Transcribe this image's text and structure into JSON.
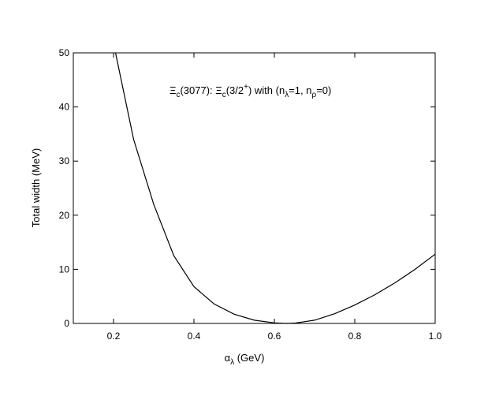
{
  "chart_data": {
    "type": "line",
    "annotation": [
      "Ξ",
      "c",
      "(3077): Ξ",
      "c",
      "(3/2",
      "+",
      ") with (n",
      "λ",
      "=1, n",
      "ρ",
      "=0)"
    ],
    "x_label": [
      "α",
      "λ",
      " (GeV)"
    ],
    "y_label": "Total width (MeV)",
    "x": [
      0.205,
      0.25,
      0.3,
      0.35,
      0.4,
      0.45,
      0.5,
      0.55,
      0.6,
      0.63,
      0.65,
      0.7,
      0.75,
      0.8,
      0.85,
      0.9,
      0.95,
      1.0
    ],
    "series": [
      {
        "color": "#000000",
        "values": [
          50,
          34,
          22,
          12.5,
          6.8,
          3.6,
          1.7,
          0.6,
          0.1,
          0,
          0.05,
          0.6,
          1.8,
          3.4,
          5.3,
          7.5,
          10,
          12.8
        ]
      }
    ],
    "xlim": [
      0.1,
      1.0
    ],
    "xticks": [
      0.2,
      0.4,
      0.6,
      0.8,
      {
        "value": 1.0,
        "label": "1.0"
      }
    ],
    "ylim": [
      0,
      50
    ],
    "yticks": [
      0,
      10,
      20,
      30,
      40,
      50
    ]
  }
}
